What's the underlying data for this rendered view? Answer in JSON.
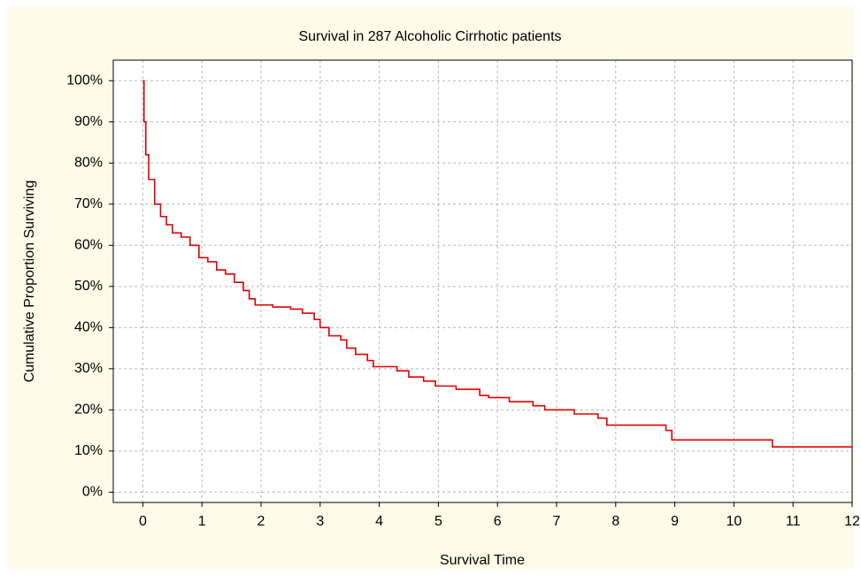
{
  "chart_data": {
    "type": "line",
    "step": true,
    "title": "Survival in 287 Alcoholic Cirrhotic patients",
    "x_label": "Survival Time",
    "y_label": "Cumulative Proportion Surviving",
    "xlim": [
      -0.5,
      12
    ],
    "xticks": [
      0,
      1,
      2,
      3,
      4,
      5,
      6,
      7,
      8,
      9,
      10,
      11,
      12
    ],
    "ylim": [
      -2.5,
      105
    ],
    "yticks": [
      {
        "value": 0,
        "label": "0%"
      },
      {
        "value": 10,
        "label": "10%"
      },
      {
        "value": 20,
        "label": "20%"
      },
      {
        "value": 30,
        "label": "30%"
      },
      {
        "value": 40,
        "label": "40%"
      },
      {
        "value": 50,
        "label": "50%"
      },
      {
        "value": 60,
        "label": "60%"
      },
      {
        "value": 70,
        "label": "70%"
      },
      {
        "value": 80,
        "label": "80%"
      },
      {
        "value": 90,
        "label": "90%"
      },
      {
        "value": 100,
        "label": "100%"
      }
    ],
    "grid": true,
    "series": [
      {
        "color": "#e00000",
        "x": [
          0,
          0.02,
          0.05,
          0.1,
          0.2,
          0.3,
          0.4,
          0.5,
          0.65,
          0.8,
          0.95,
          1.1,
          1.25,
          1.4,
          1.55,
          1.7,
          1.8,
          1.9,
          2.2,
          2.5,
          2.7,
          2.9,
          3.0,
          3.15,
          3.35,
          3.45,
          3.6,
          3.8,
          3.9,
          4.3,
          4.5,
          4.75,
          4.95,
          5.3,
          5.7,
          5.85,
          6.2,
          6.6,
          6.8,
          7.3,
          7.7,
          7.85,
          8.85,
          8.95,
          10.65,
          12
        ],
        "values": [
          100,
          90,
          82,
          76,
          70,
          67,
          65,
          63,
          62,
          60,
          57,
          56,
          54,
          53,
          51,
          49,
          47,
          45.5,
          45,
          44.5,
          43.5,
          42,
          40,
          38,
          37,
          35,
          33.5,
          32,
          30.5,
          29.5,
          28,
          27,
          25.8,
          25,
          23.5,
          23,
          22,
          21,
          20,
          19,
          18,
          16.3,
          15,
          12.7,
          11,
          11
        ]
      }
    ]
  }
}
